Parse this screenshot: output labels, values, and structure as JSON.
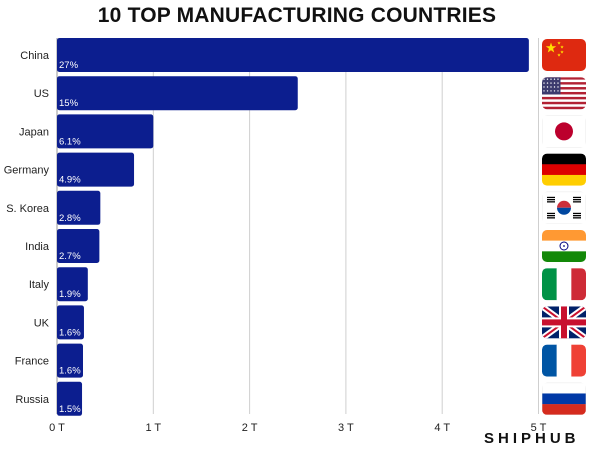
{
  "title": "10 TOP MANUFACTURING COUNTRIES",
  "brand": "SHIPHUB",
  "colors": {
    "bar": "#0c1e8f",
    "grid": "#cfcfcf",
    "text": "#222222"
  },
  "chart_data": {
    "type": "bar",
    "orientation": "horizontal",
    "title": "10 TOP MANUFACTURING COUNTRIES",
    "categories": [
      "China",
      "US",
      "Japan",
      "Germany",
      "S. Korea",
      "India",
      "Italy",
      "UK",
      "France",
      "Russia"
    ],
    "values": [
      4.9,
      2.5,
      1.0,
      0.8,
      0.45,
      0.44,
      0.32,
      0.28,
      0.27,
      0.26
    ],
    "shares": [
      "27%",
      "15%",
      "6.1%",
      "4.9%",
      "2.8%",
      "2.7%",
      "1.9%",
      "1.6%",
      "1.6%",
      "1.5%"
    ],
    "flags": [
      "china-flag-icon",
      "us-flag-icon",
      "japan-flag-icon",
      "germany-flag-icon",
      "south-korea-flag-icon",
      "india-flag-icon",
      "italy-flag-icon",
      "uk-flag-icon",
      "france-flag-icon",
      "russia-flag-icon"
    ],
    "x_ticks": [
      "0 T",
      "1 T",
      "2 T",
      "3 T",
      "4 T",
      "5 T"
    ],
    "x_tick_values": [
      0,
      1,
      2,
      3,
      4,
      5
    ],
    "xlim": [
      0,
      5
    ],
    "grid": true
  }
}
